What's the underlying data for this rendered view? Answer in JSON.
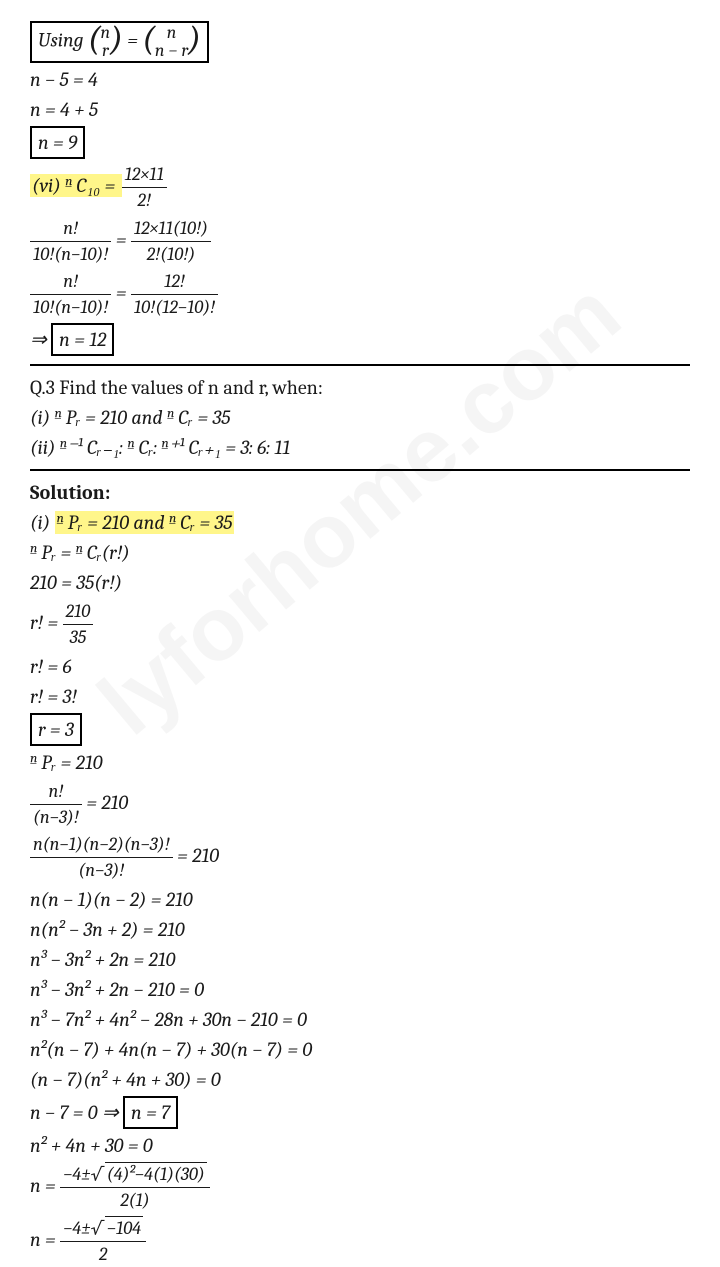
{
  "watermark": "lyforhome.com",
  "colors": {
    "text": "#1a1a1a",
    "bg": "#ffffff",
    "highlight": "#fff68a",
    "box": "#000000"
  },
  "font": {
    "family": "Cambria",
    "size_pt": 15,
    "style": "italic"
  },
  "section1": {
    "boxed_identity_pre": "Using ",
    "binom1_top": "n",
    "binom1_bot": "r",
    "eq": " = ",
    "binom2_top": "n",
    "binom2_bot": "n − r",
    "l1": "n − 5 = 4",
    "l2": "n = 4 + 5",
    "l3_boxed": "n = 9",
    "vi_label": "(vi) ",
    "vi_lhs": "ⁿ C₁₀ = ",
    "vi_frac_num": "12×11",
    "vi_frac_den": "2!",
    "l4_frac1_num": "n!",
    "l4_frac1_den": "10!(n−10)!",
    "l4_eq": " = ",
    "l4_frac2_num": "12×11(10!)",
    "l4_frac2_den": "2!(10!)",
    "l5_frac1_num": "n!",
    "l5_frac1_den": "10!(n−10)!",
    "l5_eq": " = ",
    "l5_frac2_num": "12!",
    "l5_frac2_den": "10!(12−10)!",
    "l6_pre": "⇒ ",
    "l6_boxed": "n = 12"
  },
  "q3": {
    "heading": "Q.3 Find the values of n and r, when:",
    "i": "(i)  ⁿ Pᵣ = 210 and  ⁿ Cᵣ = 35",
    "ii": "(ii)  ⁿ⁻¹ Cᵣ₋₁:  ⁿ Cᵣ:  ⁿ⁺¹ Cᵣ₊₁ = 3: 6: 11"
  },
  "sol": {
    "heading": "Solution:",
    "i_label": "(i) ",
    "i_hl": "ⁿ Pᵣ = 210 and  ⁿ Cᵣ = 35",
    "s1": "ⁿ Pᵣ = ⁿ Cᵣ(r!)",
    "s2": "210 = 35(r!)",
    "s3_pre": "r! = ",
    "s3_num": "210",
    "s3_den": "35",
    "s4": "r! = 6",
    "s5": "r! = 3!",
    "s6_boxed": "r = 3",
    "s7": "ⁿ Pᵣ = 210",
    "s8_num": "n!",
    "s8_den": "(n−3)!",
    "s8_post": " = 210",
    "s9_num": "n(n−1)(n−2)(n−3)!",
    "s9_den": "(n−3)!",
    "s9_post": " = 210",
    "s10": "n(n − 1)(n − 2) = 210",
    "s11": "n(n² − 3n + 2) = 210",
    "s12": "n³ − 3n² + 2n = 210",
    "s13": "n³ − 3n² + 2n − 210 = 0",
    "s14": "n³ − 7n² + 4n² − 28n + 30n − 210 = 0",
    "s15": "n²(n − 7) + 4n(n − 7) + 30(n − 7) = 0",
    "s16": "(n − 7)(n² + 4n + 30) = 0",
    "s17_pre": "n − 7 = 0 ⇒ ",
    "s17_boxed": "n = 7",
    "s18": "n² + 4n + 30 = 0",
    "s19_pre": "n = ",
    "s19_num_pre": "−4±",
    "s19_sqrt": "(4)²−4(1)(30)",
    "s19_den": "2(1)",
    "s20_pre": "n = ",
    "s20_num_pre": "−4±",
    "s20_sqrt": "−104",
    "s20_den": "2"
  }
}
